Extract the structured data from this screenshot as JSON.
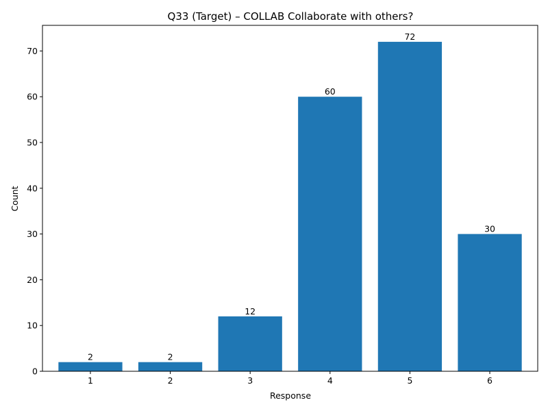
{
  "chart_data": {
    "type": "bar",
    "title": "Q33 (Target) – COLLAB Collaborate with others?",
    "xlabel": "Response",
    "ylabel": "Count",
    "categories": [
      "1",
      "2",
      "3",
      "4",
      "5",
      "6"
    ],
    "values": [
      2,
      2,
      12,
      60,
      72,
      30
    ],
    "data_labels": [
      "2",
      "2",
      "12",
      "60",
      "72",
      "30"
    ],
    "ylim": [
      0,
      75.6
    ],
    "yticks": [
      0,
      10,
      20,
      30,
      40,
      50,
      60,
      70
    ],
    "ytick_labels": [
      "0",
      "10",
      "20",
      "30",
      "40",
      "50",
      "60",
      "70"
    ],
    "grid": false,
    "legend": "none",
    "colors": {
      "bar": "#1f77b4",
      "axis": "#000000",
      "text": "#000000",
      "background": "#ffffff"
    }
  }
}
